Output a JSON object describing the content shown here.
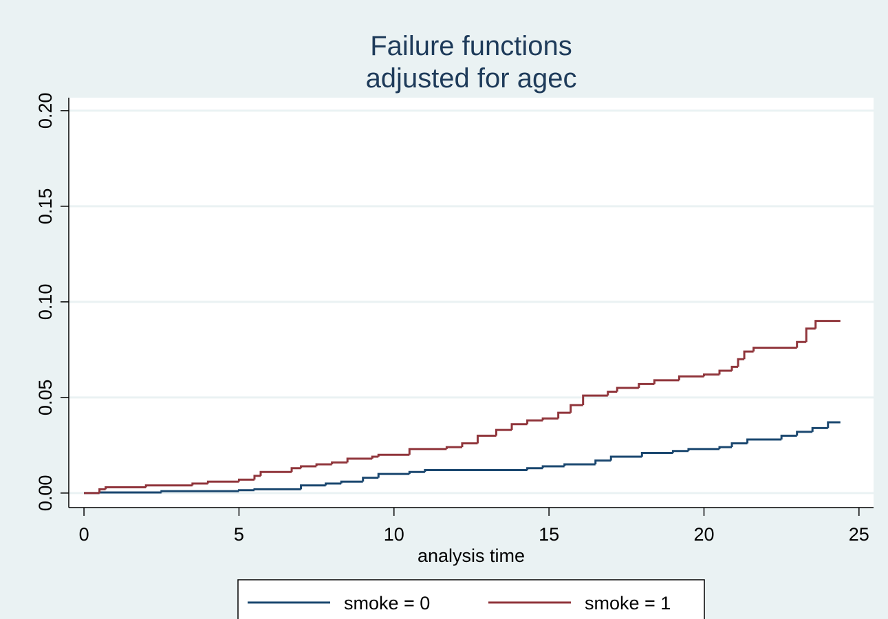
{
  "chart_data": {
    "type": "step",
    "title": "Failure functions",
    "subtitle": "adjusted for agec",
    "x_label": "analysis time",
    "xlim": [
      -0.49,
      25.47
    ],
    "xticks": [
      0,
      5,
      10,
      15,
      20,
      25
    ],
    "ylim": [
      -0.0076,
      0.2068
    ],
    "yticks": [
      {
        "value": 0,
        "label": "0.00"
      },
      {
        "value": 0.05,
        "label": "0.05"
      },
      {
        "value": 0.1,
        "label": "0.10"
      },
      {
        "value": 0.15,
        "label": "0.15"
      },
      {
        "value": 0.2,
        "label": "0.20"
      }
    ],
    "grid": true,
    "series": [
      {
        "name": "smoke = 0",
        "color": "#1a476f",
        "x": [
          0,
          0.5,
          2.5,
          5,
          5.5,
          7,
          7.8,
          8.3,
          9,
          9.5,
          10.5,
          11,
          14.3,
          14.8,
          15.5,
          16.5,
          17,
          18,
          19,
          19.5,
          20.5,
          20.9,
          21.4,
          22.5,
          23,
          23.5,
          24,
          24.4
        ],
        "values": [
          0,
          0.0003,
          0.001,
          0.0015,
          0.002,
          0.004,
          0.005,
          0.006,
          0.008,
          0.01,
          0.011,
          0.012,
          0.013,
          0.014,
          0.015,
          0.017,
          0.019,
          0.021,
          0.022,
          0.023,
          0.024,
          0.026,
          0.028,
          0.03,
          0.032,
          0.034,
          0.037,
          0.037
        ]
      },
      {
        "name": "smoke = 1",
        "color": "#90353b",
        "x": [
          0,
          0.5,
          0.7,
          2,
          3.5,
          4,
          5,
          5.5,
          5.7,
          6.7,
          7,
          7.5,
          8,
          8.5,
          9.3,
          9.5,
          10.5,
          11.7,
          12.2,
          12.7,
          13.3,
          13.8,
          14.3,
          14.8,
          15.3,
          15.7,
          16.1,
          16.9,
          17.2,
          17.9,
          18.4,
          19.2,
          20,
          20.5,
          20.9,
          21.1,
          21.3,
          21.6,
          23,
          23.3,
          23.6,
          24.4
        ],
        "values": [
          0,
          0.002,
          0.003,
          0.004,
          0.005,
          0.006,
          0.007,
          0.009,
          0.011,
          0.013,
          0.014,
          0.015,
          0.016,
          0.018,
          0.019,
          0.02,
          0.023,
          0.024,
          0.026,
          0.03,
          0.033,
          0.036,
          0.038,
          0.039,
          0.042,
          0.046,
          0.051,
          0.053,
          0.055,
          0.057,
          0.059,
          0.061,
          0.062,
          0.064,
          0.066,
          0.07,
          0.074,
          0.076,
          0.079,
          0.086,
          0.09,
          0.09
        ]
      }
    ]
  }
}
